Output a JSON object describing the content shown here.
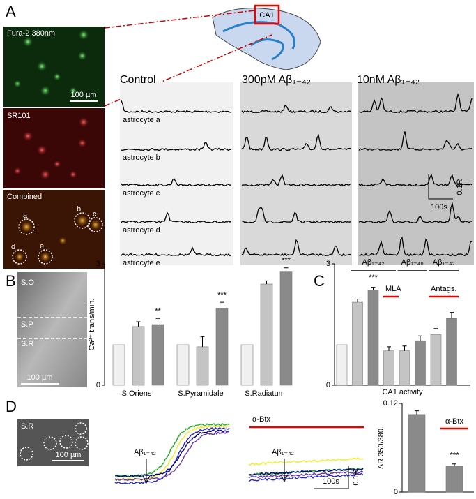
{
  "panels": {
    "a": "A",
    "b": "B",
    "c": "C",
    "d": "D"
  },
  "panel_a": {
    "images": [
      {
        "label": "Fura-2 380nm",
        "scale": "100 µm"
      },
      {
        "label": "SR101"
      },
      {
        "label": "Combined",
        "cells": [
          "a",
          "b",
          "c",
          "d",
          "e"
        ]
      }
    ],
    "region": "CA1",
    "conditions": [
      "Control",
      "300pM Aβ₁₋₄₂",
      "10nM Aβ₁₋₄₂"
    ],
    "traces": [
      "astrocyte a",
      "astrocyte b",
      "astrocyte c",
      "astrocyte d",
      "astrocyte e"
    ],
    "scale_x": "100s",
    "scale_y": "0.1R"
  },
  "panel_b_image": {
    "layers": [
      "S.O",
      "S.P",
      "S.R"
    ],
    "scale": "100 µm"
  },
  "panel_d": {
    "image_label": "S.R",
    "scale": "100 µm",
    "stimulus": "Aβ₁₋₄₂",
    "blocker": "α-Btx",
    "scale_x": "100s",
    "scale_y": "0.1R"
  },
  "chart_data": [
    {
      "type": "grouped_bar",
      "ylabel": "Ca²⁺ trans/min.",
      "categories": [
        "S.Oriens",
        "S.Pyramidale",
        "S.Radiatum"
      ],
      "series": [
        {
          "color": "#f0f0f0",
          "values": [
            1,
            1,
            1
          ],
          "errors": [
            0,
            0,
            0
          ]
        },
        {
          "color": "#c4c4c4",
          "values": [
            1.45,
            0.95,
            2.5
          ],
          "errors": [
            0.12,
            0.25,
            0.08
          ]
        },
        {
          "color": "#8a8a8a",
          "values": [
            1.5,
            1.9,
            2.8
          ],
          "errors": [
            0.15,
            0.15,
            0.1
          ],
          "significance": [
            "**",
            "***",
            "***"
          ]
        }
      ],
      "ylim": [
        0,
        3
      ],
      "yticks": [
        0,
        3
      ]
    },
    {
      "type": "bar",
      "xlabel": "CA1 activity",
      "values": [
        1,
        2.05,
        2.35,
        0.85,
        0.85,
        1.1,
        1.25,
        1.65
      ],
      "errors": [
        0,
        0.08,
        0.07,
        0.1,
        0.12,
        0.12,
        0.15,
        0.15
      ],
      "colors": [
        "#f0f0f0",
        "#c4c4c4",
        "#8a8a8a",
        "#c4c4c4",
        "#c4c4c4",
        "#8a8a8a",
        "#c4c4c4",
        "#8a8a8a"
      ],
      "groups": [
        "Aβ₁₋₄₂",
        "Aβ₁₋₄₀",
        "Aβ₁₋₄₂"
      ],
      "annotations": [
        "***",
        "MLA",
        "Antags."
      ],
      "ylim": [
        0,
        3
      ],
      "yticks": [
        0,
        3
      ]
    },
    {
      "type": "bar",
      "ylabel": "ΔR 350/380.",
      "values": [
        0.105,
        0.035
      ],
      "errors": [
        0.005,
        0.003
      ],
      "color": "#8a8a8a",
      "annotations": [
        "α-Btx",
        "***"
      ],
      "ylim": [
        0,
        0.12
      ],
      "yticks": [
        0,
        0.12
      ]
    }
  ]
}
